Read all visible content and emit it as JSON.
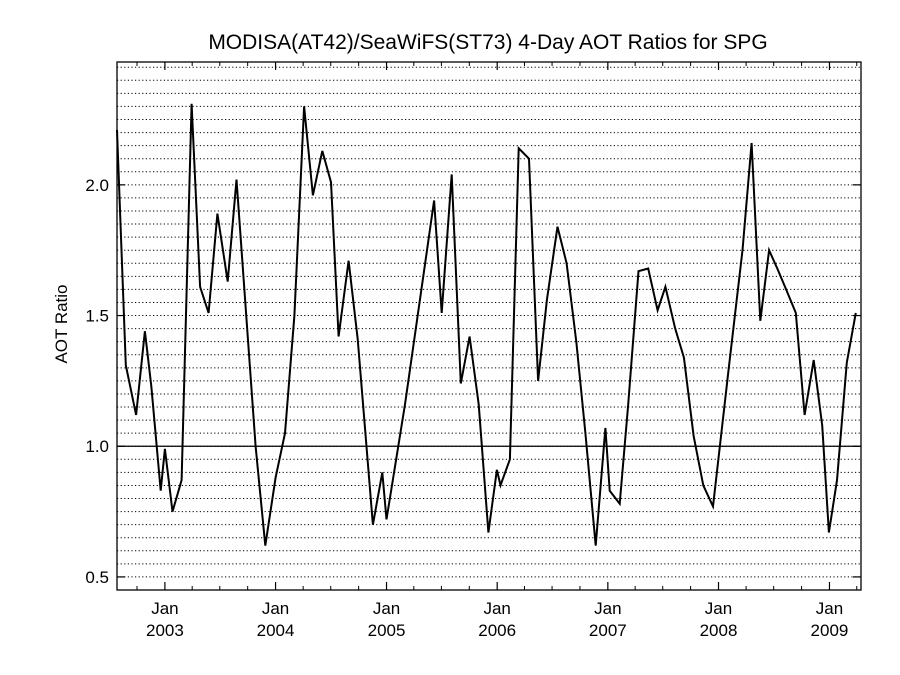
{
  "chart_data": {
    "type": "line",
    "title": "MODISA(AT42)/SeaWiFS(ST73) 4-Day AOT Ratios for SPG",
    "xlabel": "",
    "ylabel": "AOT Ratio",
    "xlim": [
      "2002-07-27",
      "2009-04-15"
    ],
    "ylim": [
      0.45,
      2.47
    ],
    "x_ticks": [
      {
        "date": "2003-01-01",
        "month": "Jan",
        "year": "2003"
      },
      {
        "date": "2004-01-01",
        "month": "Jan",
        "year": "2004"
      },
      {
        "date": "2005-01-01",
        "month": "Jan",
        "year": "2005"
      },
      {
        "date": "2006-01-01",
        "month": "Jan",
        "year": "2006"
      },
      {
        "date": "2007-01-01",
        "month": "Jan",
        "year": "2007"
      },
      {
        "date": "2008-01-01",
        "month": "Jan",
        "year": "2008"
      },
      {
        "date": "2009-01-01",
        "month": "Jan",
        "year": "2009"
      }
    ],
    "y_ticks": [
      {
        "value": 0.5,
        "label": "0.5"
      },
      {
        "value": 1.0,
        "label": "1.0"
      },
      {
        "value": 1.5,
        "label": "1.5"
      },
      {
        "value": 2.0,
        "label": "2.0"
      }
    ],
    "reference_line": 1.0,
    "grid": "horizontal dotted",
    "series": [
      {
        "points": [
          [
            "2002-07-27",
            2.21
          ],
          [
            "2002-08-25",
            1.31
          ],
          [
            "2002-09-28",
            1.12
          ],
          [
            "2002-10-27",
            1.44
          ],
          [
            "2002-11-17",
            1.23
          ],
          [
            "2002-12-18",
            0.83
          ],
          [
            "2003-01-01",
            0.99
          ],
          [
            "2003-01-26",
            0.75
          ],
          [
            "2003-02-25",
            0.87
          ],
          [
            "2003-03-30",
            2.31
          ],
          [
            "2003-04-27",
            1.61
          ],
          [
            "2003-05-25",
            1.51
          ],
          [
            "2003-06-23",
            1.89
          ],
          [
            "2003-07-27",
            1.63
          ],
          [
            "2003-08-25",
            2.02
          ],
          [
            "2003-10-27",
            1.0
          ],
          [
            "2003-11-28",
            0.62
          ],
          [
            "2004-01-01",
            0.88
          ],
          [
            "2004-02-01",
            1.05
          ],
          [
            "2004-03-03",
            1.5
          ],
          [
            "2004-04-04",
            2.3
          ],
          [
            "2004-05-03",
            1.96
          ],
          [
            "2004-06-03",
            2.13
          ],
          [
            "2004-07-02",
            2.01
          ],
          [
            "2004-07-27",
            1.42
          ],
          [
            "2004-08-29",
            1.71
          ],
          [
            "2004-09-28",
            1.41
          ],
          [
            "2004-11-17",
            0.7
          ],
          [
            "2004-12-18",
            0.9
          ],
          [
            "2005-01-01",
            0.72
          ],
          [
            "2005-03-03",
            1.16
          ],
          [
            "2005-06-07",
            1.94
          ],
          [
            "2005-07-02",
            1.51
          ],
          [
            "2005-08-04",
            2.04
          ],
          [
            "2005-09-03",
            1.24
          ],
          [
            "2005-10-02",
            1.42
          ],
          [
            "2005-11-01",
            1.16
          ],
          [
            "2005-12-03",
            0.67
          ],
          [
            "2005-12-31",
            0.91
          ],
          [
            "2006-01-12",
            0.85
          ],
          [
            "2006-02-12",
            0.95
          ],
          [
            "2006-03-13",
            2.14
          ],
          [
            "2006-04-16",
            2.1
          ],
          [
            "2006-05-16",
            1.25
          ],
          [
            "2006-06-14",
            1.56
          ],
          [
            "2006-07-19",
            1.84
          ],
          [
            "2006-08-18",
            1.7
          ],
          [
            "2006-09-19",
            1.4
          ],
          [
            "2006-10-19",
            1.05
          ],
          [
            "2006-11-22",
            0.62
          ],
          [
            "2006-12-24",
            1.07
          ],
          [
            "2007-01-07",
            0.83
          ],
          [
            "2007-02-09",
            0.78
          ],
          [
            "2007-03-09",
            1.16
          ],
          [
            "2007-04-12",
            1.67
          ],
          [
            "2007-05-14",
            1.68
          ],
          [
            "2007-06-14",
            1.52
          ],
          [
            "2007-07-10",
            1.61
          ],
          [
            "2007-08-11",
            1.45
          ],
          [
            "2007-09-09",
            1.34
          ],
          [
            "2007-10-11",
            1.04
          ],
          [
            "2007-11-12",
            0.85
          ],
          [
            "2007-12-14",
            0.77
          ],
          [
            "2008-02-04",
            1.3
          ],
          [
            "2008-03-20",
            1.75
          ],
          [
            "2008-04-19",
            2.16
          ],
          [
            "2008-05-18",
            1.48
          ],
          [
            "2008-06-16",
            1.75
          ],
          [
            "2008-07-13",
            1.68
          ],
          [
            "2008-08-11",
            1.6
          ],
          [
            "2008-09-12",
            1.51
          ],
          [
            "2008-10-11",
            1.12
          ],
          [
            "2008-11-10",
            1.33
          ],
          [
            "2008-12-08",
            1.08
          ],
          [
            "2008-12-30",
            0.67
          ],
          [
            "2009-01-26",
            0.87
          ],
          [
            "2009-02-27",
            1.32
          ],
          [
            "2009-03-29",
            1.51
          ]
        ]
      }
    ]
  }
}
